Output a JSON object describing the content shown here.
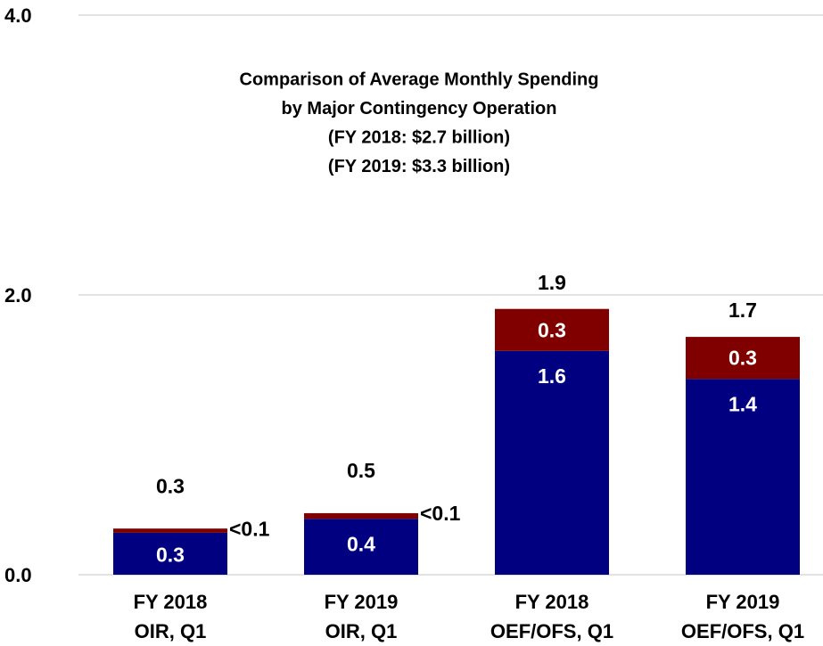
{
  "chart_data": {
    "type": "stacked_bar",
    "title": [
      "Comparison of Average Monthly Spending",
      "by Major Contingency Operation",
      "(FY 2018: $2.7 billion)",
      "(FY 2019: $3.3 billion)"
    ],
    "categories": [
      [
        "FY 2018",
        "OIR, Q1"
      ],
      [
        "FY 2019",
        "OIR, Q1"
      ],
      [
        "FY 2018",
        "OEF/OFS, Q1"
      ],
      [
        "FY 2019",
        "OEF/OFS, Q1"
      ]
    ],
    "series": [
      {
        "color": "#000080",
        "values": [
          0.3,
          0.4,
          1.6,
          1.4
        ]
      },
      {
        "color": "#800000",
        "values": [
          0.03,
          0.04,
          0.3,
          0.3
        ],
        "value_labels": [
          "<0.1",
          "<0.1",
          "0.3",
          "0.3"
        ]
      }
    ],
    "totals": [
      0.3,
      0.5,
      1.9,
      1.7
    ],
    "ylim": [
      0,
      4
    ],
    "yticks": [
      {
        "value": 0,
        "label": "0.0"
      },
      {
        "value": 2,
        "label": "2.0"
      },
      {
        "value": 4,
        "label": "4.0"
      }
    ],
    "grid": true
  }
}
